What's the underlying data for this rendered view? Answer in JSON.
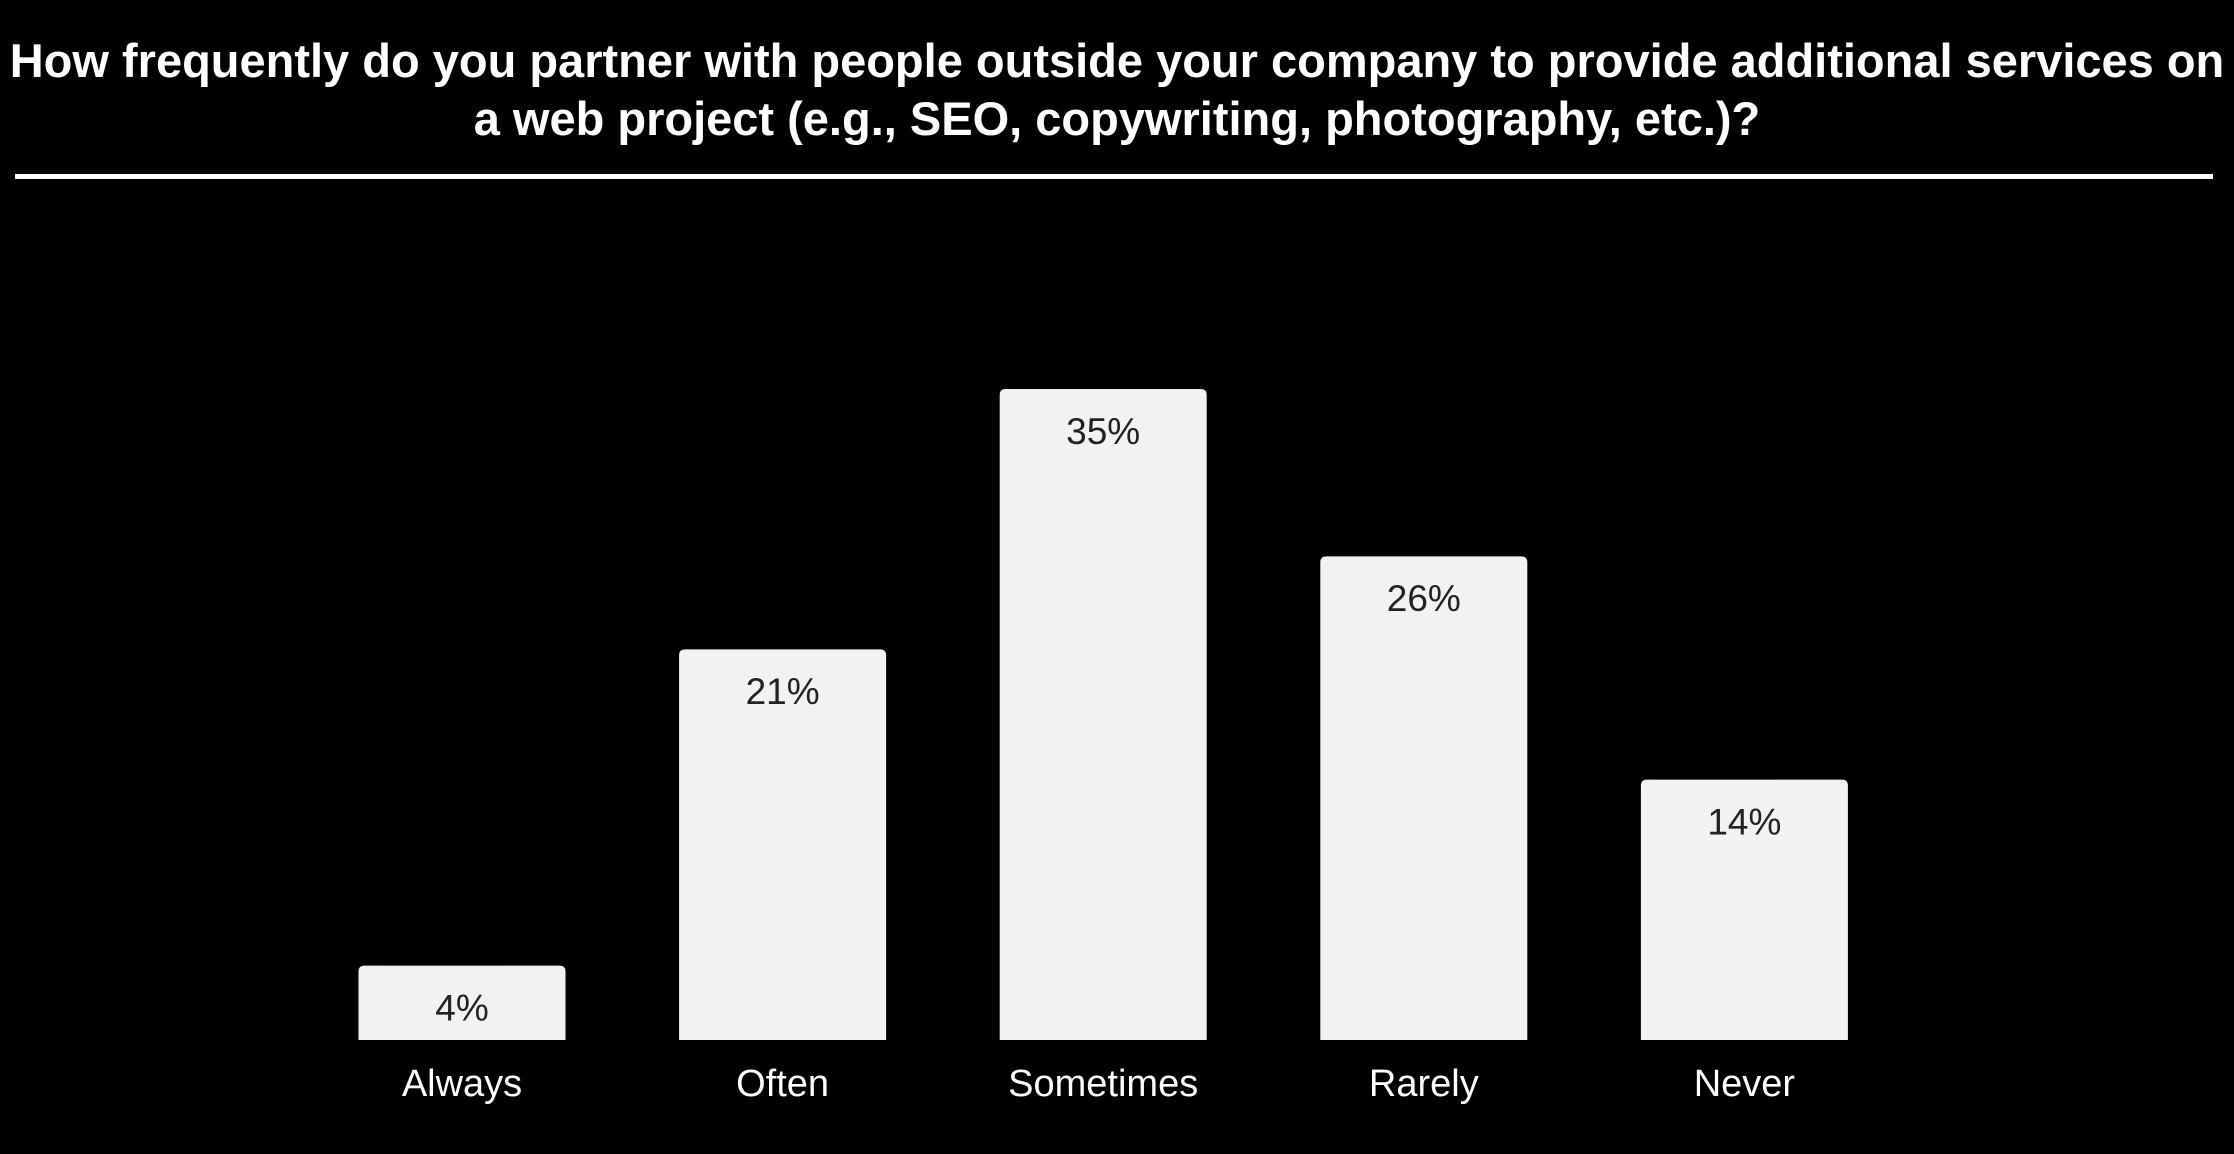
{
  "chart_data": {
    "type": "bar",
    "title": "How frequently do you partner with people outside your company to provide additional services on a web project (e.g., SEO, copywriting, photography, etc.)?",
    "categories": [
      "Always",
      "Often",
      "Sometimes",
      "Rarely",
      "Never"
    ],
    "values": [
      4,
      21,
      35,
      26,
      14
    ],
    "value_labels": [
      "4%",
      "21%",
      "35%",
      "26%",
      "14%"
    ],
    "color": "#f2f2f2"
  }
}
